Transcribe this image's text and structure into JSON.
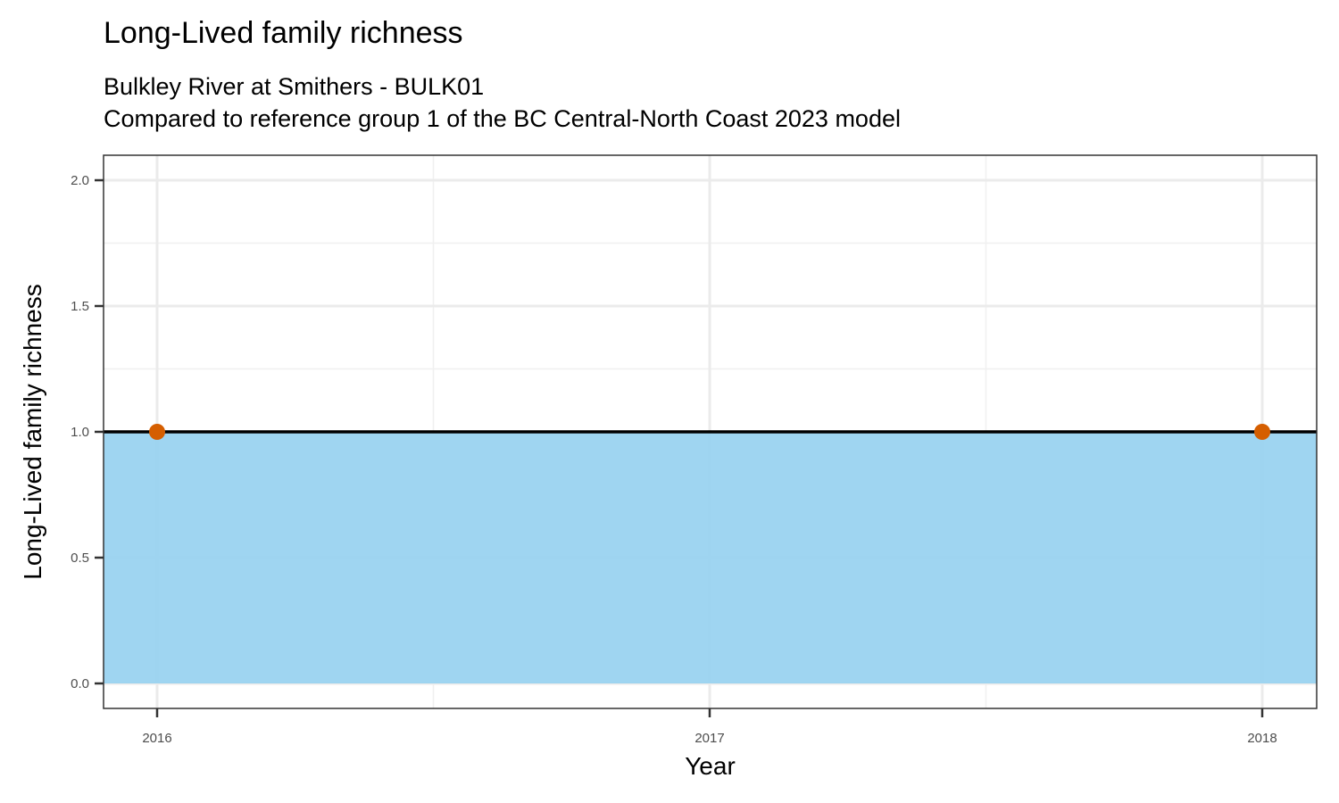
{
  "chart_data": {
    "type": "line",
    "title": "Long-Lived family richness",
    "subtitle": [
      "Bulkley River at Smithers - BULK01",
      "Compared to reference group 1 of the BC Central-North Coast 2023 model"
    ],
    "xlabel": "Year",
    "ylabel": "Long-Lived family richness",
    "x": [
      2016,
      2018
    ],
    "series": [
      {
        "name": "Long-Lived family richness",
        "values": [
          1,
          1
        ],
        "color": "#D55E00"
      }
    ],
    "reference_line": 1.0,
    "reference_band": {
      "lower": 0,
      "upper": 1,
      "color": "#9AD3F0"
    },
    "xlim": [
      2015.905,
      2018.1
    ],
    "ylim": [
      -0.095,
      2.1
    ],
    "xticks": [
      2016,
      2017,
      2018
    ],
    "xtick_labels": [
      "2016",
      "2017",
      "2018"
    ],
    "yticks": [
      0,
      0.5,
      1,
      1.5,
      2
    ],
    "ytick_labels": [
      "0.0",
      "0.5",
      "1.0",
      "1.5",
      "2.0"
    ],
    "grid": true,
    "legend": "none"
  }
}
